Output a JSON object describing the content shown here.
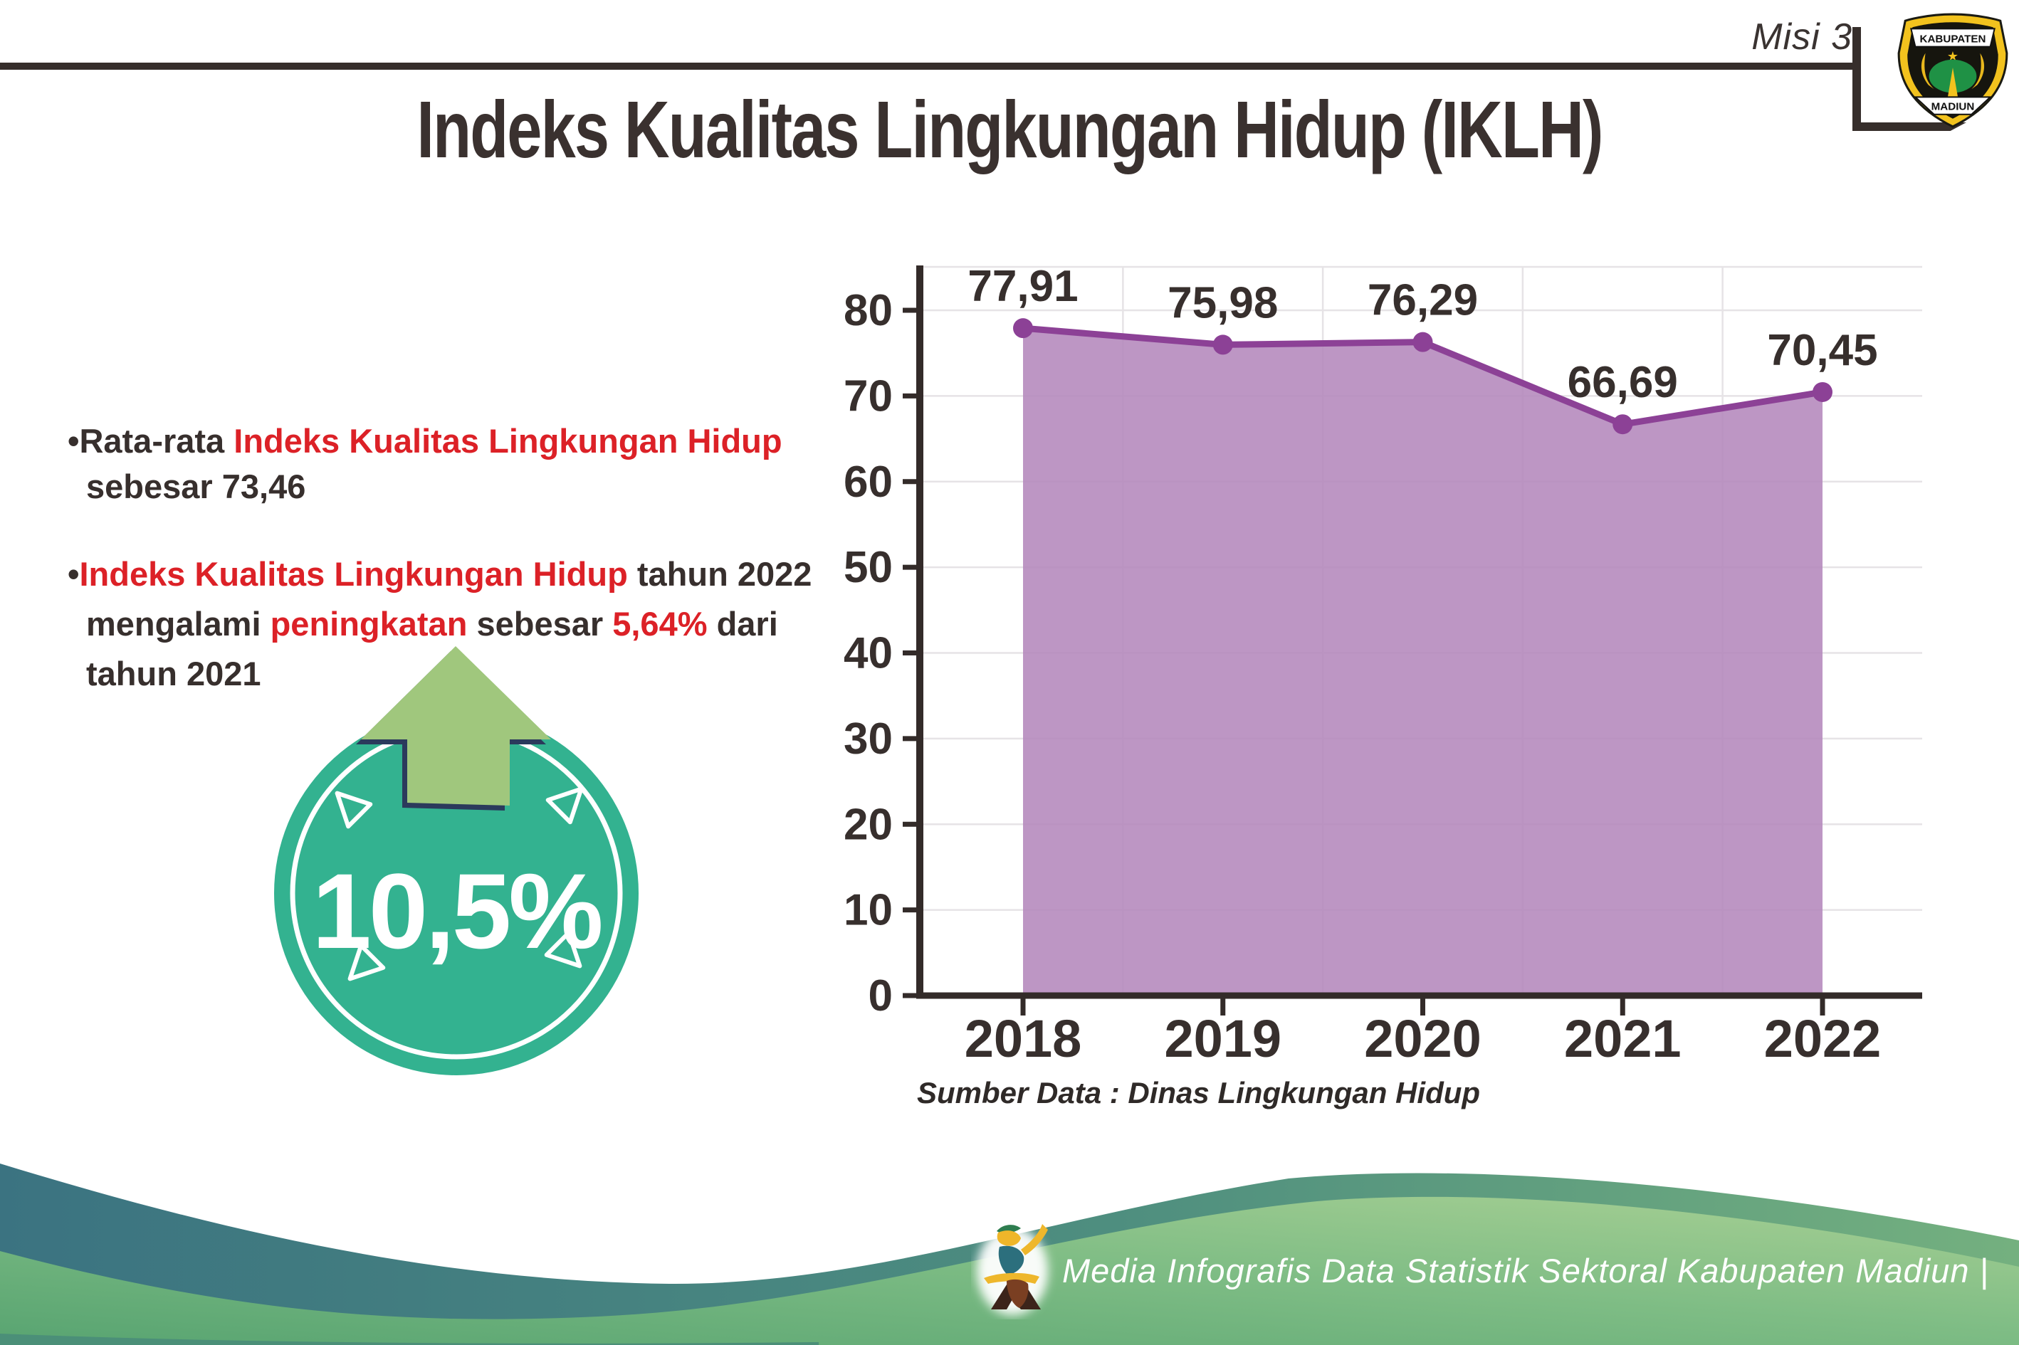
{
  "header": {
    "misi_label": "Misi 3",
    "logo": {
      "top_text": "KABUPATEN",
      "bottom_text": "MADIUN"
    }
  },
  "title": "Indeks Kualitas Lingkungan Hidup (IKLH)",
  "bullets": [
    {
      "lines": [
        {
          "indent": false,
          "runs": [
            {
              "t": "•Rata-rata ",
              "c": "dark"
            },
            {
              "t": "Indeks Kualitas Lingkungan Hidup",
              "c": "red"
            }
          ]
        },
        {
          "indent": true,
          "runs": [
            {
              "t": "sebesar 73,46",
              "c": "dark"
            }
          ]
        }
      ]
    },
    {
      "lines": [
        {
          "indent": false,
          "runs": [
            {
              "t": "•",
              "c": "dark"
            },
            {
              "t": "Indeks Kualitas Lingkungan Hidup",
              "c": "red"
            },
            {
              "t": " tahun 2022",
              "c": "dark"
            }
          ]
        },
        {
          "indent": true,
          "runs": [
            {
              "t": "mengalami ",
              "c": "dark"
            },
            {
              "t": "peningkatan",
              "c": "red"
            },
            {
              "t": " sebesar ",
              "c": "dark"
            },
            {
              "t": "5,64%",
              "c": "red"
            },
            {
              "t": " dari",
              "c": "dark"
            }
          ]
        },
        {
          "indent": true,
          "runs": [
            {
              "t": "tahun 2021",
              "c": "dark"
            }
          ]
        }
      ]
    }
  ],
  "badge": {
    "value": "10,5%"
  },
  "chart_data": {
    "type": "area",
    "categories": [
      "2018",
      "2019",
      "2020",
      "2021",
      "2022"
    ],
    "values": [
      77.91,
      75.98,
      76.29,
      66.69,
      70.45
    ],
    "value_labels": [
      "77,91",
      "75,98",
      "76,29",
      "66,69",
      "70,45"
    ],
    "y_ticks": [
      0,
      10,
      20,
      30,
      40,
      50,
      60,
      70,
      80
    ],
    "ylim": [
      0,
      85
    ],
    "grid": true,
    "legend": "none",
    "xlabel": "",
    "ylabel": "",
    "title": "",
    "source_note": "Sumber Data : Dinas Lingkungan Hidup"
  },
  "footer": {
    "credit": "Media Infografis Data Statistik Sektoral Kabupaten Madiun |"
  },
  "colors": {
    "dark_text": "#372f2d",
    "red_accent": "#dc2127",
    "badge_teal": "#33b290",
    "arrow_green": "#a0c77d",
    "arrow_outline_navy": "#2b3a5c",
    "chart_line_purple": "#8c4196",
    "chart_fill_purple": "#b487bc",
    "gridline": "#e6e3e6",
    "axis": "#332b29",
    "wave_teal": "#3b7381",
    "wave_green": "#58a471",
    "wave_green_light": "#a8d094"
  }
}
